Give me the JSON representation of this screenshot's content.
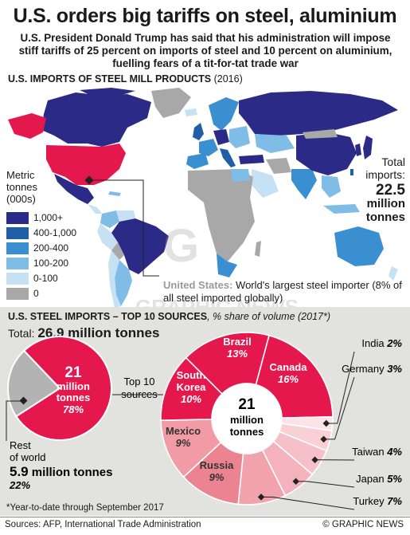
{
  "title": "U.S. orders big tariffs on steel, aluminium",
  "subtitle": "U.S. President Donald Trump has said that his administration will impose stiff tariffs of 25 percent on imports of steel and 10 percent on aluminium, fuelling fears of a tit-for-tat trade war",
  "map_section": {
    "heading": "U.S. Imports of Steel Mill Products",
    "year": "(2016)",
    "legend_title": "Metric\ntonnes\n(000s)",
    "legend": [
      {
        "label": "1,000+",
        "color": "#2b2a86"
      },
      {
        "label": "400-1,000",
        "color": "#1f5fa8"
      },
      {
        "label": "200-400",
        "color": "#3a8fd0"
      },
      {
        "label": "100-200",
        "color": "#7fbde6"
      },
      {
        "label": "0-100",
        "color": "#c6e1f4"
      },
      {
        "label": "0",
        "color": "#a8a8a8"
      }
    ],
    "us_color": "#e5184e",
    "total_label": "Total\nimports:",
    "total_value": "22.5",
    "total_unit": "million\ntonnes",
    "us_note_label": "United States:",
    "us_note_text": "World's largest steel importer (8% of all steel imported globally)"
  },
  "imports_section": {
    "heading": "U.S. Steel Imports – Top 10 Sources",
    "heading_sub": ", % share of volume (2017*)",
    "total_label": "Total:",
    "total_value": "26.9 million tonnes",
    "footnote": "*Year-to-date through September 2017"
  },
  "chart_data": [
    {
      "type": "pie",
      "title": "",
      "slices": [
        {
          "name": "Top 10 sources",
          "value": 78,
          "amount": "21 million tonnes",
          "color": "#e5184e"
        },
        {
          "name": "Rest of world",
          "value": 22,
          "amount": "5.9 million tonnes",
          "color": "#b3b3b3"
        }
      ],
      "center_label": {
        "value": "21",
        "unit": "million tonnes",
        "pct": "78%"
      },
      "callout_top10": "Top 10 sources",
      "callout_rest": {
        "label": "Rest of world",
        "value": "5.9",
        "unit": "million tonnes",
        "pct": "22%"
      }
    },
    {
      "type": "pie",
      "title": "",
      "center_label": {
        "value": "21",
        "unit": "million tonnes"
      },
      "slices": [
        {
          "name": "Canada",
          "value": 16,
          "pct": "16%",
          "color": "#e5184e"
        },
        {
          "name": "India",
          "value": 2,
          "pct": "2%",
          "color": "#fbe3e7"
        },
        {
          "name": "Germany",
          "value": 3,
          "pct": "3%",
          "color": "#f8d0d6"
        },
        {
          "name": "Taiwan",
          "value": 4,
          "pct": "4%",
          "color": "#f6c0c8"
        },
        {
          "name": "Japan",
          "value": 5,
          "pct": "5%",
          "color": "#f4b2bc"
        },
        {
          "name": "Turkey",
          "value": 7,
          "pct": "7%",
          "color": "#f1a2ad"
        },
        {
          "name": "Russia",
          "value": 9,
          "pct": "9%",
          "color": "#ec8391"
        },
        {
          "name": "Mexico",
          "value": 9,
          "pct": "9%",
          "color": "#f29aa6"
        },
        {
          "name": "South Korea",
          "value": 10,
          "pct": "10%",
          "color": "#e5184e"
        },
        {
          "name": "Brazil",
          "value": 13,
          "pct": "13%",
          "color": "#e5184e"
        }
      ]
    }
  ],
  "sources": "Sources: AFP, International Trade Administration",
  "credit": "© GRAPHIC NEWS",
  "watermark": "GRAPHIC NEWS"
}
